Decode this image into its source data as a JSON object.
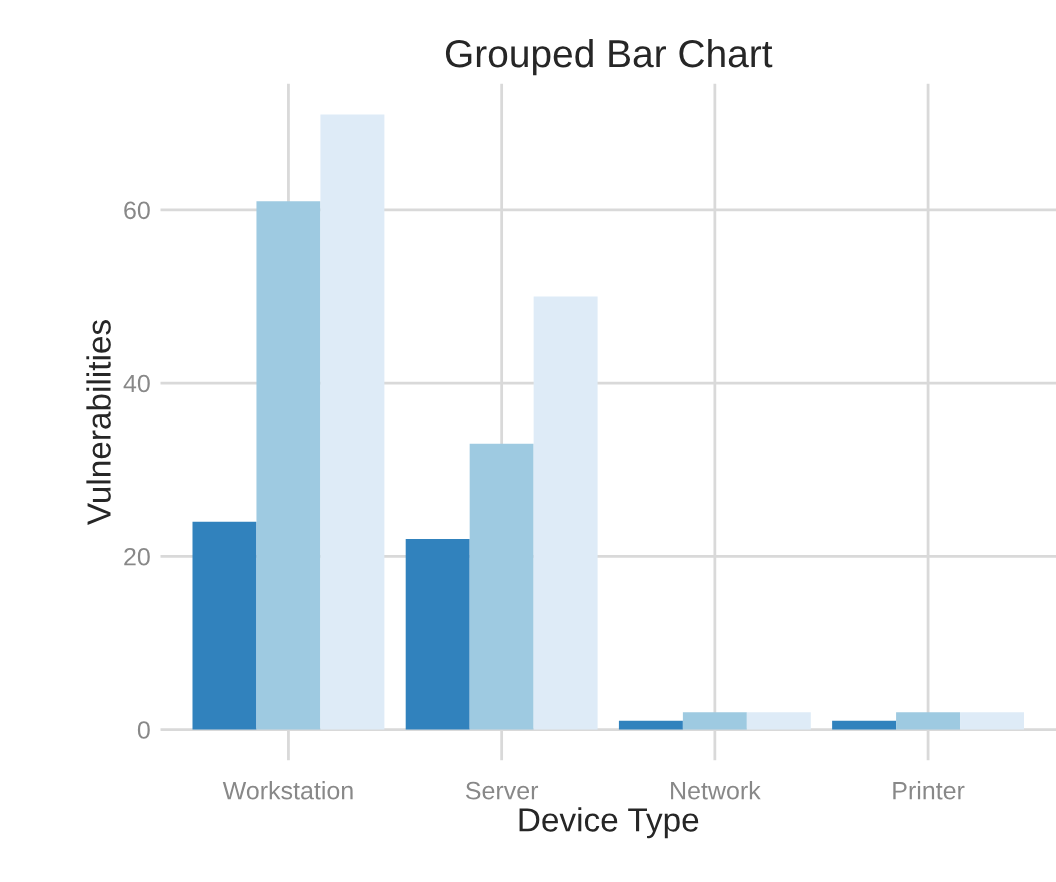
{
  "chart_data": {
    "type": "bar",
    "title": "Grouped Bar Chart",
    "xlabel": "Device Type",
    "ylabel": "Vulnerabilities",
    "categories": [
      "Workstation",
      "Server",
      "Network",
      "Printer"
    ],
    "series": [
      {
        "color": "#3182bd",
        "values": [
          24,
          22,
          1,
          1
        ]
      },
      {
        "color": "#9ecae1",
        "values": [
          61,
          33,
          2,
          2
        ]
      },
      {
        "color": "#deebf7",
        "values": [
          71,
          50,
          2,
          2
        ]
      }
    ],
    "ylim": [
      -3.55,
      74.55
    ],
    "yticks": [
      0,
      20,
      40,
      60
    ],
    "grid": true
  }
}
